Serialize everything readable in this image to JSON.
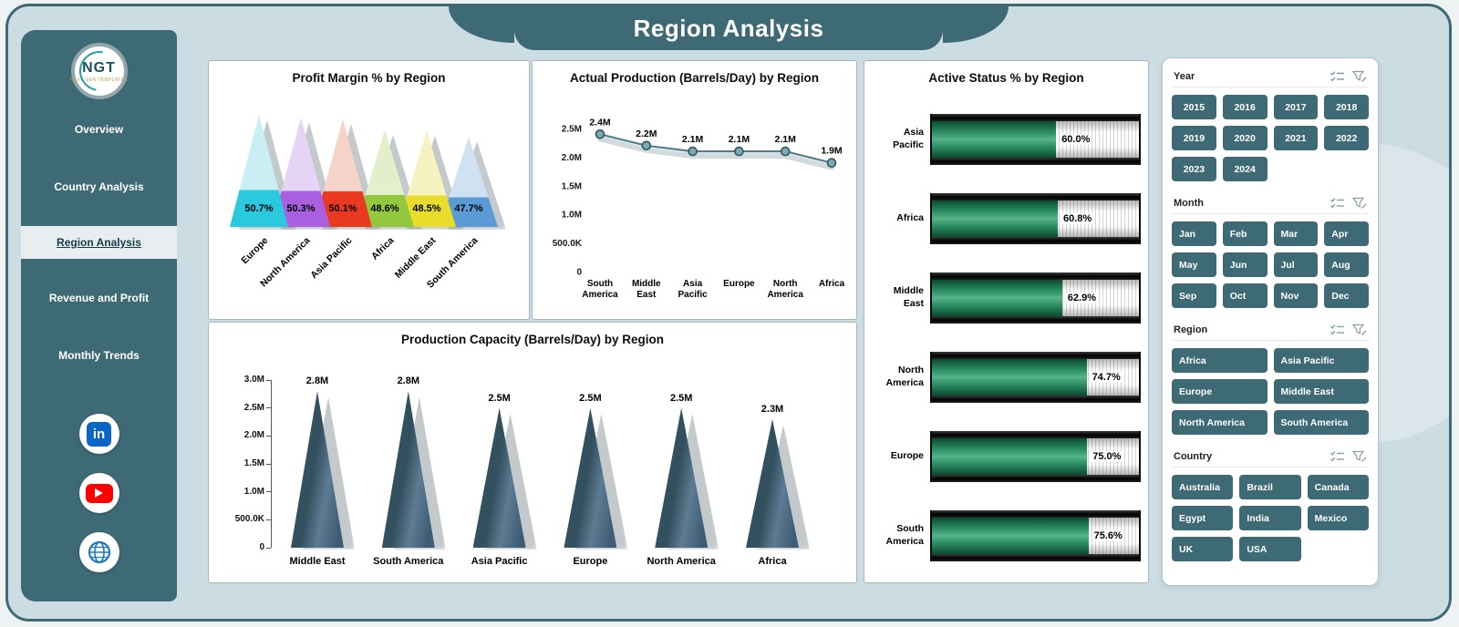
{
  "header": {
    "title": "Region Analysis"
  },
  "sidebar": {
    "logo_text": "NGT",
    "logo_subtext": "NEXT GEN TEMPLATES",
    "items": [
      {
        "label": "Overview",
        "active": false
      },
      {
        "label": "Country Analysis",
        "active": false
      },
      {
        "label": "Region Analysis",
        "active": true
      },
      {
        "label": "Revenue and Profit",
        "active": false
      },
      {
        "label": "Monthly Trends",
        "active": false
      }
    ],
    "social": [
      {
        "name": "linkedin"
      },
      {
        "name": "youtube"
      },
      {
        "name": "website"
      }
    ]
  },
  "filters": {
    "header_icons": [
      "select-all",
      "clear-filter"
    ],
    "sections": [
      {
        "label": "Year",
        "columns": 4,
        "options": [
          "2015",
          "2016",
          "2017",
          "2018",
          "2019",
          "2020",
          "2021",
          "2022",
          "2023",
          "2024"
        ]
      },
      {
        "label": "Month",
        "columns": 4,
        "options": [
          "Jan",
          "Feb",
          "Mar",
          "Apr",
          "May",
          "Jun",
          "Jul",
          "Aug",
          "Sep",
          "Oct",
          "Nov",
          "Dec"
        ]
      },
      {
        "label": "Region",
        "columns": 2,
        "options": [
          "Africa",
          "Asia Pacific",
          "Europe",
          "Middle East",
          "North America",
          "South America"
        ]
      },
      {
        "label": "Country",
        "columns": 3,
        "options": [
          "Australia",
          "Brazil",
          "Canada",
          "Egypt",
          "India",
          "Mexico",
          "UK",
          "USA"
        ]
      }
    ]
  },
  "colors": {
    "accent": "#3e6a76",
    "canvas_bg": "#cbdce2",
    "gauge_green": "#2c8d63"
  },
  "chart_data": [
    {
      "type": "bar",
      "subtype": "cone",
      "title": "Profit Margin % by Region",
      "categories": [
        "Europe",
        "North America",
        "Asia Pacific",
        "Africa",
        "Middle East",
        "South America"
      ],
      "values": [
        50.7,
        50.3,
        50.1,
        48.6,
        48.5,
        47.7
      ],
      "labels": [
        "50.7%",
        "50.3%",
        "50.1%",
        "48.6%",
        "48.5%",
        "47.7%"
      ],
      "colors": [
        "#2bc9dd",
        "#a95fe0",
        "#e93a20",
        "#93c83e",
        "#e8dd2b",
        "#5b9bd5"
      ],
      "pale_colors": [
        "#c9eff4",
        "#e5d4f5",
        "#f6d3c8",
        "#e3efcb",
        "#f7f3c0",
        "#d0e1f1"
      ],
      "xlabel": "",
      "ylabel": ""
    },
    {
      "type": "line",
      "title": "Actual Production (Barrels/Day) by Region",
      "categories": [
        "South America",
        "Middle East",
        "Asia Pacific",
        "Europe",
        "North America",
        "Africa"
      ],
      "values": [
        2400000,
        2200000,
        2100000,
        2100000,
        2100000,
        1900000
      ],
      "labels": [
        "2.4M",
        "2.2M",
        "2.1M",
        "2.1M",
        "2.1M",
        "1.9M"
      ],
      "yticks": [
        "0",
        "500.0K",
        "1.0M",
        "1.5M",
        "2.0M",
        "2.5M"
      ],
      "ylim": [
        0,
        2500000
      ],
      "xlabel": "",
      "ylabel": ""
    },
    {
      "type": "bar",
      "subtype": "cone",
      "title": "Production Capacity (Barrels/Day) by Region",
      "categories": [
        "Middle East",
        "South America",
        "Asia Pacific",
        "Europe",
        "North America",
        "Africa"
      ],
      "values": [
        2800000,
        2800000,
        2500000,
        2500000,
        2500000,
        2300000
      ],
      "labels": [
        "2.8M",
        "2.8M",
        "2.5M",
        "2.5M",
        "2.5M",
        "2.3M"
      ],
      "yticks": [
        "0",
        "500.0K",
        "1.0M",
        "1.5M",
        "2.0M",
        "2.5M",
        "3.0M"
      ],
      "ylim": [
        0,
        3000000
      ],
      "color": "#3e5c73",
      "xlabel": "",
      "ylabel": ""
    },
    {
      "type": "bar",
      "subtype": "battery-gauge",
      "title": "Active Status % by Region",
      "categories": [
        "Asia Pacific",
        "Africa",
        "Middle East",
        "North America",
        "Europe",
        "South America"
      ],
      "values": [
        60.0,
        60.8,
        62.9,
        74.7,
        75.0,
        75.6
      ],
      "labels": [
        "60.0%",
        "60.8%",
        "62.9%",
        "74.7%",
        "75.0%",
        "75.6%"
      ],
      "xlim": [
        0,
        100
      ],
      "fill_color": "#2c8d63"
    }
  ]
}
